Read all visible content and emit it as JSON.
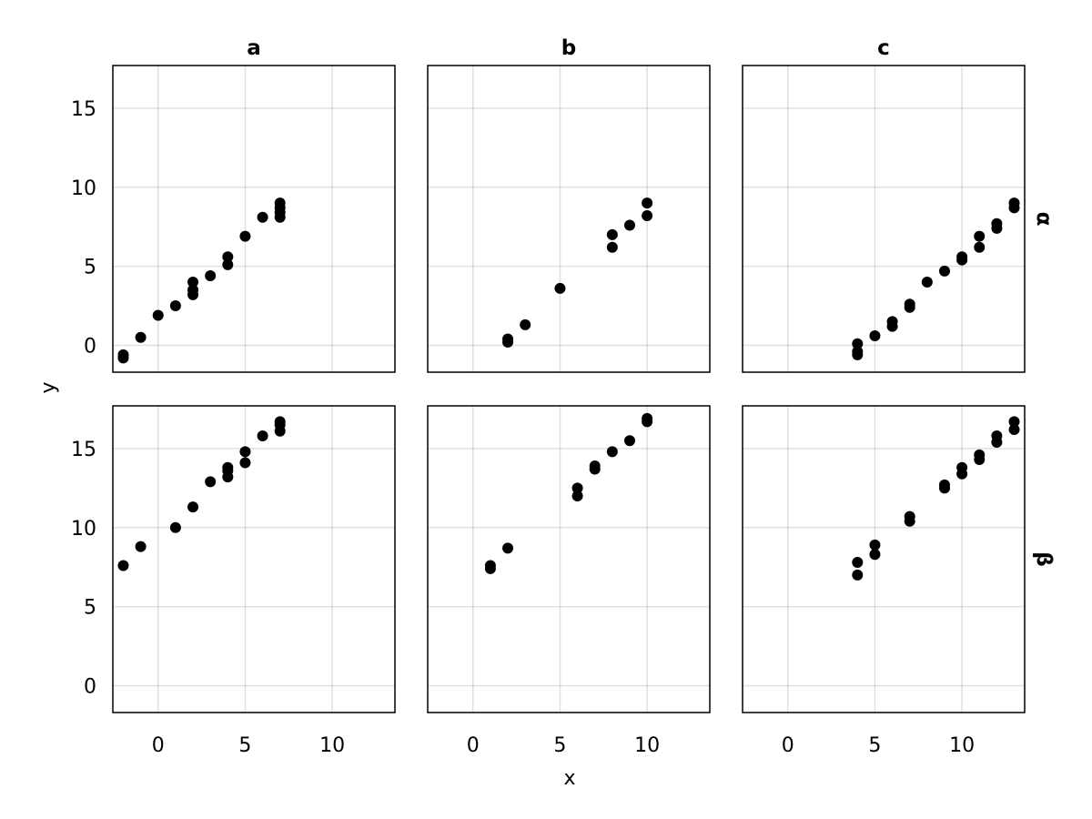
{
  "chart_data": {
    "type": "scatter",
    "layout": "facet-grid",
    "xlabel": "x",
    "ylabel": "y",
    "xlim": [
      -2.6,
      13.6
    ],
    "ylim": [
      -1.7,
      17.7
    ],
    "xticks": [
      0,
      5,
      10
    ],
    "yticks": [
      0,
      5,
      10,
      15
    ],
    "grid": true,
    "marker_color": "#000000",
    "col_labels": [
      "a",
      "b",
      "c"
    ],
    "row_labels": [
      "α",
      "β"
    ],
    "panels": [
      {
        "col": "a",
        "row": "α",
        "points": [
          [
            -2,
            -0.6
          ],
          [
            -2,
            -0.8
          ],
          [
            -1,
            0.5
          ],
          [
            0,
            1.9
          ],
          [
            1,
            2.5
          ],
          [
            2,
            3.2
          ],
          [
            2,
            3.5
          ],
          [
            2,
            4.0
          ],
          [
            3,
            4.4
          ],
          [
            4,
            5.1
          ],
          [
            4,
            5.6
          ],
          [
            5,
            6.9
          ],
          [
            6,
            8.1
          ],
          [
            7,
            8.1
          ],
          [
            7,
            8.4
          ],
          [
            7,
            8.7
          ],
          [
            7,
            9.0
          ]
        ]
      },
      {
        "col": "b",
        "row": "α",
        "points": [
          [
            2,
            0.2
          ],
          [
            2,
            0.4
          ],
          [
            3,
            1.3
          ],
          [
            5,
            3.6
          ],
          [
            8,
            6.2
          ],
          [
            8,
            7.0
          ],
          [
            9,
            7.6
          ],
          [
            10,
            8.2
          ],
          [
            10,
            9.0
          ]
        ]
      },
      {
        "col": "c",
        "row": "α",
        "points": [
          [
            4,
            -0.6
          ],
          [
            4,
            -0.4
          ],
          [
            4,
            0.1
          ],
          [
            5,
            0.6
          ],
          [
            6,
            1.2
          ],
          [
            6,
            1.5
          ],
          [
            7,
            2.4
          ],
          [
            7,
            2.6
          ],
          [
            8,
            4.0
          ],
          [
            9,
            4.7
          ],
          [
            10,
            5.4
          ],
          [
            10,
            5.6
          ],
          [
            11,
            6.2
          ],
          [
            11,
            6.9
          ],
          [
            12,
            7.4
          ],
          [
            12,
            7.7
          ],
          [
            13,
            8.7
          ],
          [
            13,
            9.0
          ]
        ]
      },
      {
        "col": "a",
        "row": "β",
        "points": [
          [
            -2,
            7.6
          ],
          [
            -1,
            8.8
          ],
          [
            1,
            10.0
          ],
          [
            2,
            11.3
          ],
          [
            3,
            12.9
          ],
          [
            4,
            13.2
          ],
          [
            4,
            13.6
          ],
          [
            4,
            13.8
          ],
          [
            5,
            14.1
          ],
          [
            5,
            14.8
          ],
          [
            6,
            15.8
          ],
          [
            7,
            16.1
          ],
          [
            7,
            16.5
          ],
          [
            7,
            16.7
          ]
        ]
      },
      {
        "col": "b",
        "row": "β",
        "points": [
          [
            1,
            7.4
          ],
          [
            1,
            7.6
          ],
          [
            2,
            8.7
          ],
          [
            6,
            12.0
          ],
          [
            6,
            12.5
          ],
          [
            7,
            13.7
          ],
          [
            7,
            13.9
          ],
          [
            8,
            14.8
          ],
          [
            9,
            15.5
          ],
          [
            10,
            16.7
          ],
          [
            10,
            16.9
          ]
        ]
      },
      {
        "col": "c",
        "row": "β",
        "points": [
          [
            4,
            7.0
          ],
          [
            4,
            7.8
          ],
          [
            5,
            8.3
          ],
          [
            5,
            8.9
          ],
          [
            7,
            10.4
          ],
          [
            7,
            10.7
          ],
          [
            9,
            12.5
          ],
          [
            9,
            12.7
          ],
          [
            10,
            13.4
          ],
          [
            10,
            13.8
          ],
          [
            11,
            14.3
          ],
          [
            11,
            14.6
          ],
          [
            12,
            15.4
          ],
          [
            12,
            15.8
          ],
          [
            13,
            16.2
          ],
          [
            13,
            16.7
          ]
        ]
      }
    ]
  }
}
